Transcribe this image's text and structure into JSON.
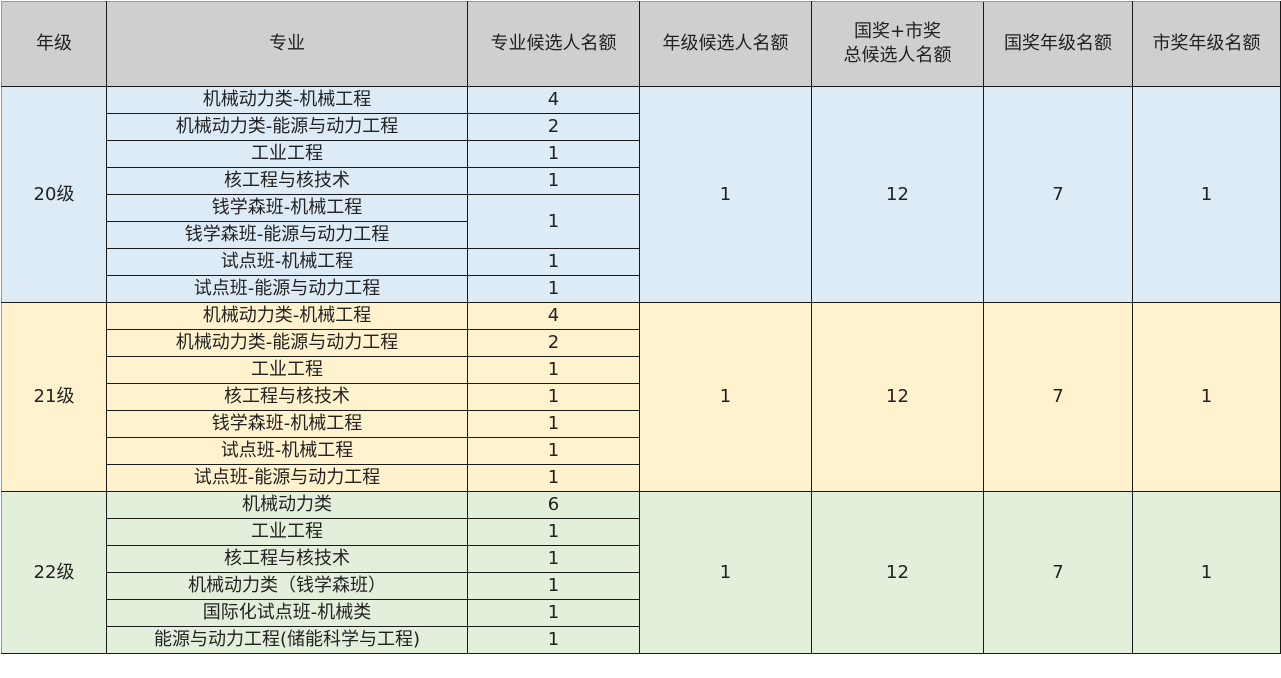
{
  "header": [
    "年级",
    "专业",
    "专业候选人名额",
    "年级候选人名额",
    "国奖+市奖\n总候选人名额",
    "国奖年级名额",
    "市奖年级名额"
  ],
  "header_line1": "国奖+市奖",
  "header_line2": "总候选人名额",
  "colors": {
    "header": "#d0cece",
    "g20": "#ddebf7",
    "g21": "#fff2cc",
    "g22": "#e2efda"
  },
  "groups": [
    {
      "grade": "20级",
      "cls": "g20",
      "grade_quota": "1",
      "total_quota": "12",
      "national_quota": "7",
      "city_quota": "1",
      "majors": [
        {
          "name": "机械动力类-机械工程",
          "quota": "4"
        },
        {
          "name": "机械动力类-能源与动力工程",
          "quota": "2"
        },
        {
          "name": "工业工程",
          "quota": "1"
        },
        {
          "name": "核工程与核技术",
          "quota": "1"
        },
        {
          "name": "钱学森班-机械工程",
          "quota": "1",
          "span": 2
        },
        {
          "name": "钱学森班-能源与动力工程"
        },
        {
          "name": "试点班-机械工程",
          "quota": "1"
        },
        {
          "name": "试点班-能源与动力工程",
          "quota": "1"
        }
      ]
    },
    {
      "grade": "21级",
      "cls": "g21",
      "grade_quota": "1",
      "total_quota": "12",
      "national_quota": "7",
      "city_quota": "1",
      "majors": [
        {
          "name": "机械动力类-机械工程",
          "quota": "4"
        },
        {
          "name": "机械动力类-能源与动力工程",
          "quota": "2"
        },
        {
          "name": "工业工程",
          "quota": "1"
        },
        {
          "name": "核工程与核技术",
          "quota": "1"
        },
        {
          "name": "钱学森班-机械工程",
          "quota": "1"
        },
        {
          "name": "试点班-机械工程",
          "quota": "1"
        },
        {
          "name": "试点班-能源与动力工程",
          "quota": "1"
        }
      ]
    },
    {
      "grade": "22级",
      "cls": "g22",
      "grade_quota": "1",
      "total_quota": "12",
      "national_quota": "7",
      "city_quota": "1",
      "majors": [
        {
          "name": "机械动力类",
          "quota": "6"
        },
        {
          "name": "工业工程",
          "quota": "1"
        },
        {
          "name": "核工程与核技术",
          "quota": "1"
        },
        {
          "name": "机械动力类（钱学森班）",
          "quota": "1"
        },
        {
          "name": "国际化试点班-机械类",
          "quota": "1"
        },
        {
          "name": "能源与动力工程(储能科学与工程)",
          "quota": "1"
        }
      ]
    }
  ]
}
